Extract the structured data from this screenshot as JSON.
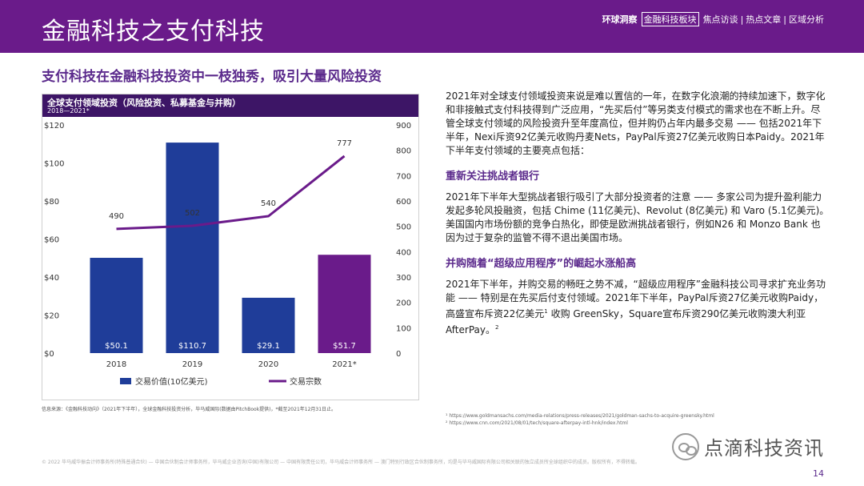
{
  "header": {
    "title": "金融科技之支付科技",
    "nav": [
      "环球洞察",
      "金融科技板块",
      "焦点访谈",
      "热点文章",
      "区域分析"
    ]
  },
  "subtitle": "支付科技在金融科技投资中一枝独秀，吸引大量风险投资",
  "chart_data": {
    "type": "bar",
    "title": "全球支付领域投资（风险投资、私募基金与并购）",
    "subtitle": "2018—2021*",
    "categories": [
      "2018",
      "2019",
      "2020",
      "2021*"
    ],
    "series": [
      {
        "name": "交易价值(10亿美元)",
        "type": "bar",
        "axis": "left",
        "values": [
          50.1,
          110.7,
          29.1,
          51.7
        ],
        "labels": [
          "$50.1",
          "$110.7",
          "$29.1",
          "$51.7"
        ],
        "colors": [
          "#1f3d99",
          "#1f3d99",
          "#1f3d99",
          "#6a1b8a"
        ]
      },
      {
        "name": "交易宗数",
        "type": "line",
        "axis": "right",
        "values": [
          490,
          502,
          540,
          777
        ],
        "color": "#6a1b8a"
      }
    ],
    "y_left": {
      "min": 0,
      "max": 120,
      "ticks": [
        "$0",
        "$20",
        "$40",
        "$60",
        "$80",
        "$100",
        "$120"
      ]
    },
    "y_right": {
      "min": 0,
      "max": 900,
      "ticks": [
        "0",
        "100",
        "200",
        "300",
        "400",
        "500",
        "600",
        "700",
        "800",
        "900"
      ]
    },
    "legend": "bottom"
  },
  "source": "信息来源：《金融科技动向》（2021年下半年），全球金融科技投资分析，毕马威国际(数据由PitchBook提供)，*截至2021年12月31日止。",
  "right": {
    "intro": "2021年对全球支付领域投资来说是难以置信的一年，在数字化浪潮的持续加速下，数字化和非接触式支付科技得到广泛应用，“先买后付”等另类支付模式的需求也在不断上升。尽管全球支付领域的风险投资升至年度高位，但并购仍占年内最多交易 —— 包括2021年下半年，Nexi斥资92亿美元收购丹麦Nets，PayPal斥资27亿美元收购日本Paidy。2021年下半年支付领域的主要亮点包括：",
    "section1_title": "重新关注挑战者银行",
    "section1_text": "2021年下半年大型挑战者银行吸引了大部分投资者的注意 —— 多家公司为提升盈利能力发起多轮风投融资，包括 Chime (11亿美元)、Revolut (8亿美元) 和 Varo (5.1亿美元)。美国国内市场份额的竞争白热化，即使是欧洲挑战者银行，例如N26 和 Monzo Bank 也因为过于复杂的监管不得不退出美国市场。",
    "section2_title": "并购随着“超级应用程序”的崛起水涨船高",
    "section2_text_a": "2021年下半年，并购交易的畅旺之势不减，“超级应用程序”金融科技公司寻求扩充业务功能 —— 特别是在先买后付支付领域。2021年下半年，PayPal斥资27亿美元收购Paidy，高盛宣布斥资22亿美元",
    "sup1": "1",
    "section2_text_b": " 收购 GreenSky，Square宣布斥资290亿美元收购澳大利亚AfterPay。",
    "sup2": "2",
    "footnote1": "¹ https://www.goldmansachs.com/media-relations/press-releases/2021/goldman-sachs-to-acquire-greensky.html",
    "footnote2": "² https://www.cnn.com/2021/08/01/tech/square-afterpay-intl-hnk/index.html"
  },
  "copyright": "© 2022 毕马威华振会计师事务所(特殊普通合伙) — 中国合伙制会计师事务所，毕马威企业咨询(中国)有限公司 — 中国有限责任公司，毕马威会计师事务所 — 澳门特别行政区合伙制事务所，均是与毕马威国际有限公司相关联的独立成员所全球组织中的成员。版权所有，不得转载。",
  "watermark": "点滴科技资讯",
  "page_number": "14"
}
